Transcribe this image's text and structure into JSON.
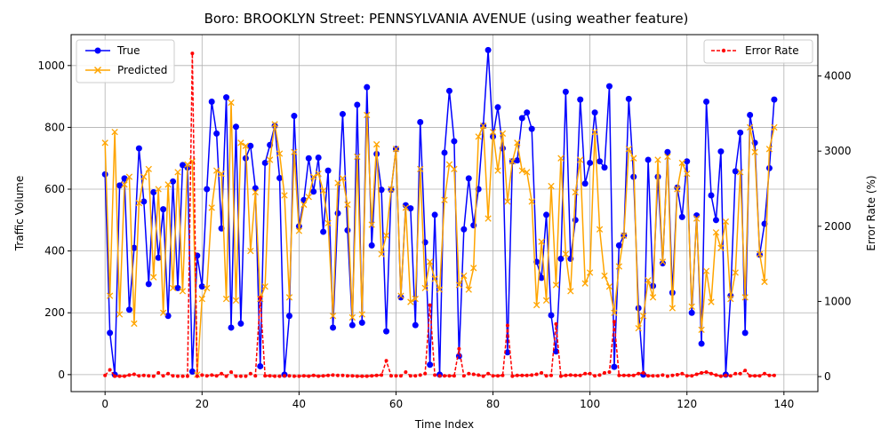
{
  "chart_data": {
    "type": "line",
    "title": "Boro: BROOKLYN Street: PENNSYLVANIA AVENUE (using weather feature)",
    "xlabel": "Time Index",
    "ylabel_left": "Traffic Volume",
    "ylabel_right": "Error Rate (%)",
    "xlim": [
      -7,
      147
    ],
    "ylim_left": [
      -55,
      1100
    ],
    "ylim_right": [
      -200,
      4550
    ],
    "xticks": [
      0,
      20,
      40,
      60,
      80,
      100,
      120,
      140
    ],
    "yticks_left": [
      0,
      200,
      400,
      600,
      800,
      1000
    ],
    "yticks_right": [
      0,
      1000,
      2000,
      3000,
      4000
    ],
    "grid": true,
    "legend_left_position": "upper left",
    "legend_right_position": "upper right",
    "series": [
      {
        "name": "True",
        "axis": "left",
        "color": "#0000ff",
        "marker": "circle",
        "values": [
          648,
          135,
          0,
          612,
          635,
          210,
          410,
          732,
          560,
          293,
          590,
          378,
          535,
          190,
          625,
          280,
          678,
          670,
          10,
          385,
          285,
          600,
          883,
          780,
          473,
          897,
          152,
          802,
          165,
          700,
          740,
          603,
          27,
          685,
          743,
          805,
          636,
          0,
          190,
          837,
          480,
          565,
          700,
          592,
          702,
          462,
          660,
          152,
          522,
          843,
          467,
          160,
          873,
          168,
          930,
          418,
          714,
          598,
          140,
          598,
          730,
          250,
          548,
          538,
          160,
          817,
          428,
          32,
          517,
          0,
          718,
          918,
          755,
          60,
          470,
          635,
          483,
          600,
          805,
          1050,
          770,
          865,
          732,
          72,
          690,
          693,
          830,
          848,
          795,
          365,
          313,
          517,
          192,
          75,
          375,
          915,
          375,
          500,
          890,
          618,
          685,
          848,
          690,
          670,
          933,
          25,
          418,
          450,
          892,
          640,
          215,
          0,
          695,
          287,
          640,
          360,
          720,
          265,
          605,
          510,
          690,
          200,
          515,
          100,
          883,
          580,
          500,
          722,
          0,
          255,
          658,
          783,
          135,
          840,
          750,
          388,
          488,
          668,
          890
        ]
      },
      {
        "name": "Predicted",
        "axis": "left",
        "color": "#ffa500",
        "marker": "x",
        "values": [
          750,
          255,
          785,
          195,
          615,
          640,
          165,
          555,
          640,
          665,
          315,
          600,
          200,
          615,
          280,
          655,
          270,
          680,
          690,
          0,
          245,
          280,
          540,
          660,
          650,
          245,
          880,
          240,
          750,
          740,
          400,
          590,
          245,
          285,
          695,
          810,
          715,
          580,
          250,
          720,
          465,
          550,
          575,
          640,
          650,
          595,
          490,
          190,
          620,
          635,
          550,
          185,
          705,
          195,
          840,
          485,
          745,
          390,
          450,
          600,
          730,
          255,
          540,
          235,
          245,
          665,
          280,
          365,
          310,
          275,
          565,
          680,
          665,
          290,
          320,
          275,
          345,
          770,
          805,
          505,
          785,
          660,
          780,
          560,
          690,
          750,
          660,
          655,
          560,
          225,
          430,
          240,
          610,
          290,
          700,
          390,
          270,
          590,
          695,
          295,
          330,
          785,
          470,
          320,
          285,
          200,
          350,
          450,
          730,
          700,
          150,
          190,
          305,
          250,
          695,
          365,
          705,
          215,
          600,
          685,
          650,
          220,
          505,
          145,
          335,
          235,
          460,
          410,
          495,
          245,
          330,
          655,
          250,
          800,
          720,
          390,
          300,
          730,
          800
        ]
      },
      {
        "name": "Error Rate",
        "axis": "right",
        "color": "#ff0000",
        "style": "dashed",
        "values": [
          15,
          90,
          5,
          5,
          5,
          20,
          30,
          10,
          15,
          10,
          5,
          50,
          10,
          40,
          10,
          5,
          5,
          5,
          4300,
          5,
          20,
          10,
          20,
          10,
          40,
          5,
          60,
          5,
          5,
          5,
          40,
          10,
          1050,
          10,
          10,
          5,
          5,
          10,
          10,
          5,
          5,
          10,
          5,
          15,
          5,
          10,
          15,
          20,
          15,
          15,
          10,
          10,
          5,
          5,
          5,
          10,
          15,
          20,
          210,
          10,
          10,
          10,
          60,
          10,
          10,
          20,
          40,
          950,
          20,
          10,
          10,
          10,
          10,
          370,
          10,
          40,
          30,
          20,
          5,
          40,
          10,
          10,
          15,
          680,
          5,
          15,
          15,
          15,
          20,
          30,
          50,
          10,
          15,
          700,
          5,
          15,
          20,
          15,
          15,
          40,
          40,
          10,
          20,
          50,
          60,
          730,
          15,
          15,
          15,
          15,
          40,
          50,
          10,
          10,
          10,
          20,
          5,
          15,
          25,
          40,
          10,
          10,
          30,
          50,
          60,
          40,
          20,
          5,
          15,
          10,
          40,
          40,
          80,
          10,
          10,
          10,
          40,
          15,
          15
        ]
      }
    ]
  }
}
